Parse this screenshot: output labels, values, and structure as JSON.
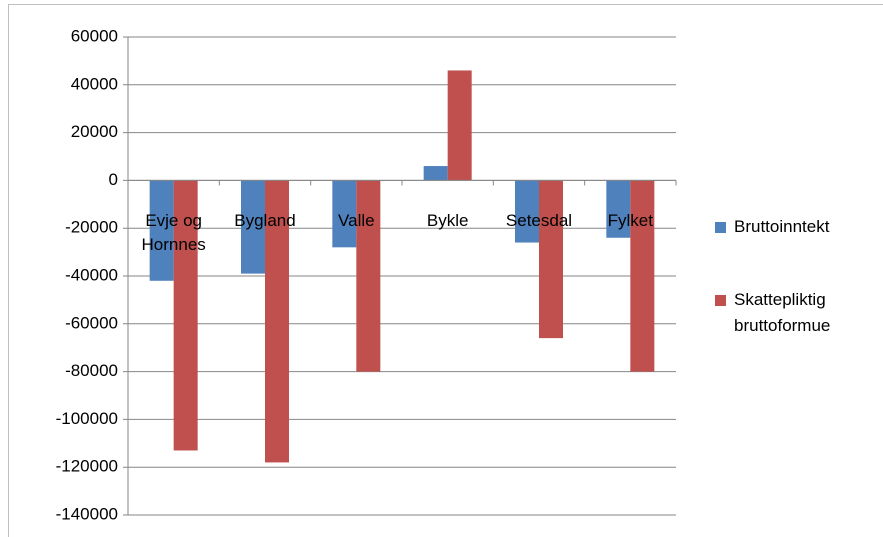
{
  "chart_data": {
    "type": "bar",
    "categories": [
      "Evje og Hornnes",
      "Bygland",
      "Valle",
      "Bykle",
      "Setesdal",
      "Fylket"
    ],
    "series": [
      {
        "name": "Bruttoinntekt",
        "color": "#4f81bd",
        "values": [
          -42000,
          -39000,
          -28000,
          6000,
          -26000,
          -24000
        ]
      },
      {
        "name": "Skattepliktig bruttoformue",
        "color": "#c0504d",
        "values": [
          -113000,
          -118000,
          -80000,
          46000,
          -66000,
          -80000
        ]
      }
    ],
    "ylim": [
      -140000,
      60000
    ],
    "yticks": [
      -140000,
      -120000,
      -100000,
      -80000,
      -60000,
      -40000,
      -20000,
      0,
      20000,
      40000,
      60000
    ],
    "grid": true,
    "legend": "right"
  }
}
